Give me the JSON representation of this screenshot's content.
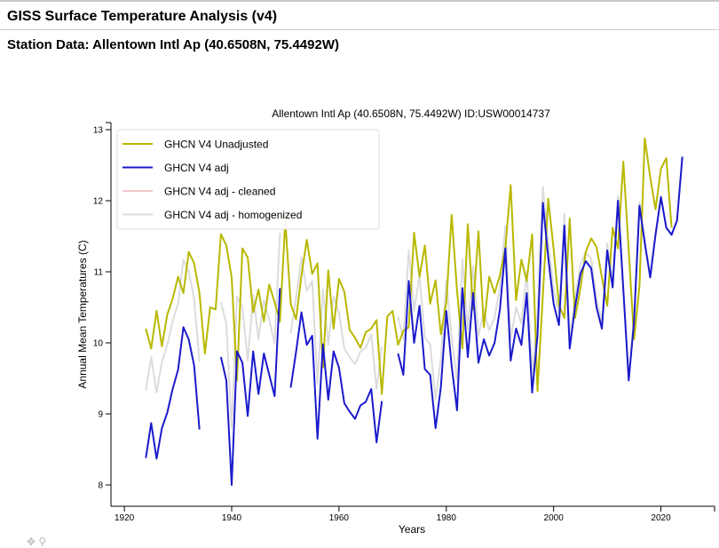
{
  "header": {
    "app_title": "GISS Surface Temperature Analysis (v4)",
    "subtitle": "Station Data: Allentown Intl Ap (40.6508N, 75.4492W)"
  },
  "icons": [
    "move-icon",
    "zoom-icon"
  ],
  "chart_data": {
    "type": "line",
    "title": "Allentown Intl Ap (40.6508N, 75.4492W) ID:USW00014737",
    "xlabel": "Years",
    "ylabel": "Annual Mean Temperatures (C)",
    "xlim": [
      1917.5,
      2030
    ],
    "ylim": [
      7.7,
      13.1
    ],
    "xticks": [
      1920,
      1940,
      1960,
      1980,
      2000,
      2020
    ],
    "yticks": [
      8,
      9,
      10,
      11,
      12,
      13
    ],
    "grid": false,
    "legend_position": "top-left",
    "series": [
      {
        "name": "GHCN V4 Unadjusted",
        "color": "#b8b800",
        "points": [
          [
            1924,
            10.2
          ],
          [
            1925,
            9.92
          ],
          [
            1926,
            10.45
          ],
          [
            1927,
            9.95
          ],
          [
            1928,
            10.4
          ],
          [
            1929,
            10.62
          ],
          [
            1930,
            10.93
          ],
          [
            1931,
            10.7
          ],
          [
            1932,
            11.28
          ],
          [
            1933,
            11.12
          ],
          [
            1934,
            10.7
          ],
          [
            1935,
            9.85
          ],
          [
            1936,
            10.5
          ],
          [
            1937,
            10.47
          ],
          [
            1938,
            11.53
          ],
          [
            1939,
            11.37
          ],
          [
            1940,
            10.92
          ],
          [
            1941,
            9.47
          ],
          [
            1942,
            11.33
          ],
          [
            1943,
            11.2
          ],
          [
            1944,
            10.43
          ],
          [
            1945,
            10.75
          ],
          [
            1946,
            10.3
          ],
          [
            1947,
            10.82
          ],
          [
            1948,
            10.57
          ],
          [
            1949,
            10.3
          ],
          [
            1950,
            11.72
          ],
          [
            1951,
            10.55
          ],
          [
            1952,
            10.33
          ],
          [
            1953,
            10.95
          ],
          [
            1954,
            11.45
          ],
          [
            1955,
            10.97
          ],
          [
            1956,
            11.12
          ],
          [
            1957,
            9.65
          ],
          [
            1958,
            11.02
          ],
          [
            1959,
            10.2
          ],
          [
            1960,
            10.9
          ],
          [
            1961,
            10.72
          ],
          [
            1962,
            10.18
          ],
          [
            1963,
            10.07
          ],
          [
            1964,
            9.93
          ],
          [
            1965,
            10.15
          ],
          [
            1966,
            10.2
          ],
          [
            1967,
            10.32
          ],
          [
            1968,
            9.28
          ],
          [
            1969,
            10.37
          ],
          [
            1970,
            10.45
          ],
          [
            1971,
            9.97
          ],
          [
            1972,
            10.17
          ],
          [
            1973,
            10.22
          ],
          [
            1974,
            11.55
          ],
          [
            1975,
            10.93
          ],
          [
            1976,
            11.37
          ],
          [
            1977,
            10.55
          ],
          [
            1978,
            10.88
          ],
          [
            1979,
            10.12
          ],
          [
            1980,
            10.57
          ],
          [
            1981,
            11.8
          ],
          [
            1982,
            10.73
          ],
          [
            1983,
            9.92
          ],
          [
            1984,
            11.67
          ],
          [
            1985,
            10.47
          ],
          [
            1986,
            11.57
          ],
          [
            1987,
            10.22
          ],
          [
            1988,
            10.93
          ],
          [
            1989,
            10.7
          ],
          [
            1990,
            10.95
          ],
          [
            1991,
            11.33
          ],
          [
            1992,
            12.22
          ],
          [
            1993,
            10.6
          ],
          [
            1994,
            11.17
          ],
          [
            1995,
            10.87
          ],
          [
            1996,
            11.53
          ],
          [
            1997,
            9.32
          ],
          [
            1998,
            10.68
          ],
          [
            1999,
            12.03
          ],
          [
            2000,
            11.32
          ],
          [
            2001,
            10.53
          ],
          [
            2002,
            10.35
          ],
          [
            2003,
            11.75
          ],
          [
            2004,
            10.35
          ],
          [
            2005,
            10.77
          ],
          [
            2006,
            11.28
          ],
          [
            2007,
            11.47
          ],
          [
            2008,
            11.35
          ],
          [
            2009,
            10.92
          ],
          [
            2010,
            10.52
          ],
          [
            2011,
            11.62
          ],
          [
            2012,
            11.33
          ],
          [
            2013,
            12.55
          ],
          [
            2014,
            11.3
          ],
          [
            2015,
            10.05
          ],
          [
            2016,
            10.8
          ],
          [
            2017,
            12.88
          ],
          [
            2018,
            12.33
          ],
          [
            2019,
            11.88
          ],
          [
            2020,
            12.45
          ],
          [
            2021,
            12.6
          ],
          [
            2022,
            11.62
          ]
        ]
      },
      {
        "name": "GHCN V4 adj",
        "color": "#1a1acc",
        "points": [
          [
            1924,
            8.38
          ],
          [
            1925,
            8.87
          ],
          [
            1926,
            8.37
          ],
          [
            1927,
            8.8
          ],
          [
            1928,
            9.02
          ],
          [
            1929,
            9.35
          ],
          [
            1930,
            9.62
          ],
          [
            1931,
            10.22
          ],
          [
            1932,
            10.05
          ],
          [
            1933,
            9.68
          ],
          [
            1934,
            8.78
          ],
          null,
          [
            1938,
            9.8
          ],
          [
            1939,
            9.47
          ],
          [
            1940,
            8.0
          ],
          [
            1941,
            9.88
          ],
          [
            1942,
            9.72
          ],
          [
            1943,
            8.97
          ],
          [
            1944,
            9.88
          ],
          [
            1945,
            9.28
          ],
          [
            1946,
            9.85
          ],
          [
            1947,
            9.55
          ],
          [
            1948,
            9.25
          ],
          [
            1949,
            10.77
          ],
          null,
          [
            1951,
            9.37
          ],
          [
            1952,
            9.87
          ],
          [
            1953,
            10.43
          ],
          [
            1954,
            9.97
          ],
          [
            1955,
            10.1
          ],
          [
            1956,
            8.65
          ],
          [
            1957,
            9.98
          ],
          [
            1958,
            9.2
          ],
          [
            1959,
            9.88
          ],
          [
            1960,
            9.65
          ],
          [
            1961,
            9.15
          ],
          [
            1962,
            9.03
          ],
          [
            1963,
            8.93
          ],
          [
            1964,
            9.12
          ],
          [
            1965,
            9.17
          ],
          [
            1966,
            9.35
          ],
          [
            1967,
            8.6
          ],
          [
            1968,
            9.18
          ],
          null,
          [
            1971,
            9.85
          ],
          [
            1972,
            9.55
          ],
          [
            1973,
            10.87
          ],
          [
            1974,
            10.0
          ],
          [
            1975,
            10.52
          ],
          [
            1976,
            9.63
          ],
          [
            1977,
            9.55
          ],
          [
            1978,
            8.8
          ],
          [
            1979,
            9.38
          ],
          [
            1980,
            10.45
          ],
          [
            1981,
            9.68
          ],
          [
            1982,
            9.05
          ],
          [
            1983,
            10.77
          ],
          [
            1984,
            9.8
          ],
          [
            1985,
            10.7
          ],
          [
            1986,
            9.72
          ],
          [
            1987,
            10.05
          ],
          [
            1988,
            9.82
          ],
          [
            1989,
            10.0
          ],
          [
            1990,
            10.47
          ],
          [
            1991,
            11.33
          ],
          [
            1992,
            9.75
          ],
          [
            1993,
            10.2
          ],
          [
            1994,
            9.97
          ],
          [
            1995,
            10.7
          ],
          [
            1996,
            9.3
          ],
          [
            1997,
            10.1
          ],
          [
            1998,
            11.97
          ],
          [
            1999,
            11.2
          ],
          [
            2000,
            10.55
          ],
          [
            2001,
            10.25
          ],
          [
            2002,
            11.65
          ],
          [
            2003,
            9.92
          ],
          [
            2004,
            10.5
          ],
          [
            2005,
            10.97
          ],
          [
            2006,
            11.15
          ],
          [
            2007,
            11.05
          ],
          [
            2008,
            10.5
          ],
          [
            2009,
            10.2
          ],
          [
            2010,
            11.3
          ],
          [
            2011,
            10.78
          ],
          [
            2012,
            12.0
          ],
          [
            2013,
            10.75
          ],
          [
            2014,
            9.47
          ],
          [
            2015,
            10.3
          ],
          [
            2016,
            11.93
          ],
          [
            2017,
            11.4
          ],
          [
            2018,
            10.92
          ],
          [
            2019,
            11.52
          ],
          [
            2020,
            12.05
          ],
          [
            2021,
            11.62
          ],
          [
            2022,
            11.52
          ],
          [
            2023,
            11.72
          ],
          [
            2024,
            12.62
          ]
        ]
      },
      {
        "name": "GHCN V4 adj - cleaned",
        "color": "#f2c6cc",
        "points": []
      },
      {
        "name": "GHCN V4 adj - homogenized",
        "color": "#dcdcdc",
        "points": [
          [
            1924,
            9.33
          ],
          [
            1925,
            9.8
          ],
          [
            1926,
            9.3
          ],
          [
            1927,
            9.73
          ],
          [
            1928,
            9.97
          ],
          [
            1929,
            10.3
          ],
          [
            1930,
            10.55
          ],
          [
            1931,
            11.17
          ],
          [
            1932,
            11.0
          ],
          [
            1933,
            10.62
          ],
          [
            1934,
            9.73
          ],
          null,
          [
            1938,
            10.57
          ],
          [
            1939,
            10.27
          ],
          [
            1940,
            8.8
          ],
          [
            1941,
            10.65
          ],
          [
            1942,
            10.5
          ],
          [
            1943,
            9.75
          ],
          [
            1944,
            10.67
          ],
          [
            1945,
            10.05
          ],
          [
            1946,
            10.6
          ],
          [
            1947,
            10.32
          ],
          [
            1948,
            10.0
          ],
          [
            1949,
            11.55
          ],
          null,
          [
            1951,
            10.13
          ],
          [
            1952,
            10.63
          ],
          [
            1953,
            11.2
          ],
          [
            1954,
            10.73
          ],
          [
            1955,
            10.87
          ],
          [
            1956,
            9.42
          ],
          [
            1957,
            10.75
          ],
          [
            1958,
            9.97
          ],
          [
            1959,
            10.65
          ],
          [
            1960,
            10.42
          ],
          [
            1961,
            9.92
          ],
          [
            1962,
            9.8
          ],
          [
            1963,
            9.7
          ],
          [
            1964,
            9.88
          ],
          [
            1965,
            9.93
          ],
          [
            1966,
            10.12
          ],
          [
            1967,
            9.35
          ],
          [
            1968,
            9.95
          ],
          null,
          [
            1971,
            10.37
          ],
          [
            1972,
            10.05
          ],
          [
            1973,
            11.3
          ],
          [
            1974,
            10.45
          ],
          [
            1975,
            10.95
          ],
          [
            1976,
            10.07
          ],
          [
            1977,
            9.98
          ],
          [
            1978,
            9.2
          ],
          [
            1979,
            9.78
          ],
          [
            1980,
            10.88
          ],
          [
            1981,
            10.07
          ],
          [
            1982,
            9.47
          ],
          [
            1983,
            11.17
          ],
          [
            1984,
            10.2
          ],
          [
            1985,
            11.08
          ],
          [
            1986,
            10.1
          ],
          [
            1987,
            10.45
          ],
          [
            1988,
            10.18
          ],
          [
            1989,
            10.35
          ],
          [
            1990,
            10.8
          ],
          [
            1991,
            11.65
          ],
          [
            1992,
            10.05
          ],
          [
            1993,
            10.5
          ],
          [
            1994,
            10.27
          ],
          [
            1995,
            11.0
          ],
          [
            1996,
            9.58
          ],
          [
            1997,
            10.38
          ],
          [
            1998,
            12.2
          ],
          [
            1999,
            11.42
          ],
          [
            2000,
            10.75
          ],
          [
            2001,
            10.42
          ],
          [
            2002,
            11.82
          ],
          [
            2003,
            10.07
          ],
          [
            2004,
            10.63
          ],
          [
            2005,
            11.1
          ],
          [
            2006,
            11.28
          ],
          [
            2007,
            11.18
          ],
          [
            2008,
            10.62
          ],
          [
            2009,
            10.3
          ],
          [
            2010,
            11.4
          ],
          [
            2011,
            10.87
          ],
          [
            2012,
            12.08
          ],
          [
            2013,
            10.82
          ],
          [
            2014,
            9.52
          ],
          [
            2015,
            10.35
          ],
          [
            2016,
            11.98
          ],
          [
            2017,
            11.45
          ],
          [
            2018,
            10.95
          ],
          [
            2019,
            11.55
          ],
          [
            2020,
            12.07
          ],
          [
            2021,
            11.63
          ],
          [
            2022,
            11.53
          ],
          [
            2023,
            11.72
          ],
          [
            2024,
            12.62
          ]
        ]
      }
    ]
  }
}
